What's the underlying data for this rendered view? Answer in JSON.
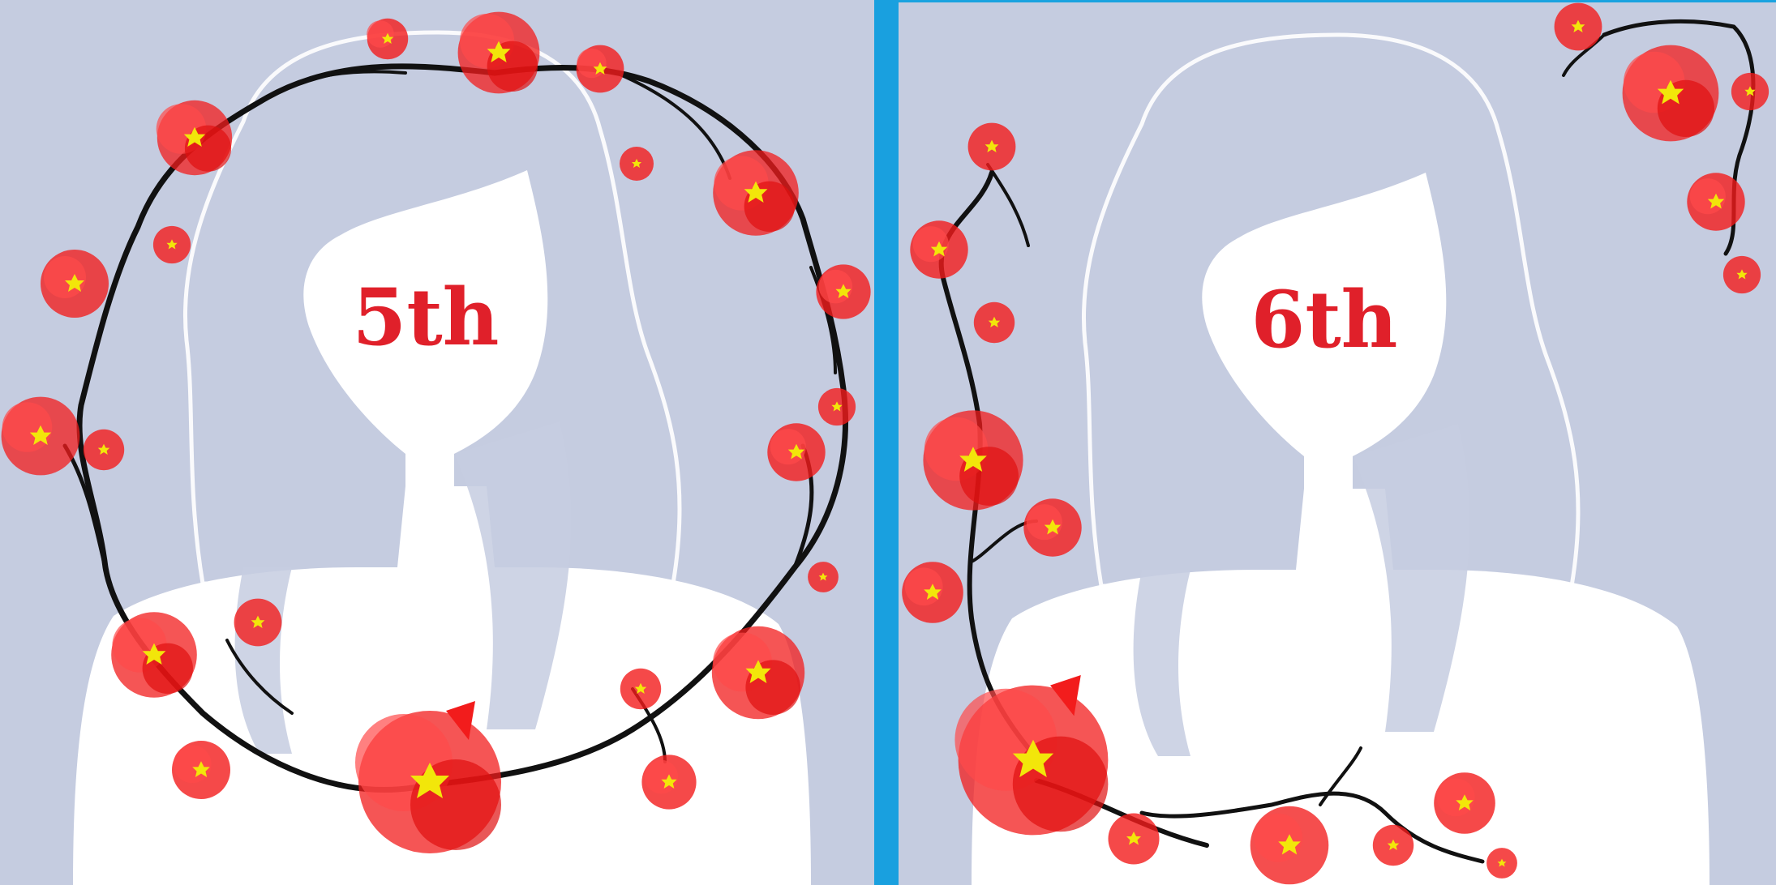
{
  "panels": [
    {
      "label": "5th",
      "label_color": "#e0202a"
    },
    {
      "label": "6th",
      "label_color": "#e0202a"
    }
  ],
  "colors": {
    "background": "#c5cce0",
    "silhouette": "#ffffff",
    "divider": "#19a0df",
    "petal": "#f21c1c",
    "petal_light": "#ff4a4a",
    "flower_center": "#f2e60a",
    "branch": "#111111"
  }
}
